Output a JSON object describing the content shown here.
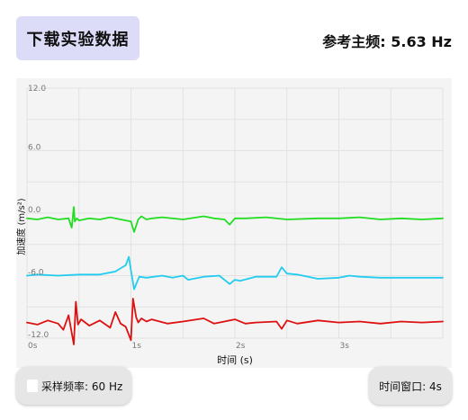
{
  "header": {
    "download_label": "下载实验数据",
    "ref_freq_label": "参考主频: 5.63 Hz"
  },
  "chart_data": {
    "type": "line",
    "title": "",
    "xlabel": "时间 (s)",
    "ylabel": "加速度 (m/s²)",
    "xlim": [
      0,
      4
    ],
    "ylim": [
      -12,
      12
    ],
    "grid": true,
    "x_ticks": [
      {
        "value": 0,
        "label": "0s"
      },
      {
        "value": 1,
        "label": "1s"
      },
      {
        "value": 2,
        "label": "2s"
      },
      {
        "value": 3,
        "label": "3s"
      }
    ],
    "y_ticks": [
      {
        "value": 12,
        "label": "12.0"
      },
      {
        "value": 6,
        "label": "6.0"
      },
      {
        "value": 0,
        "label": "0.0"
      },
      {
        "value": -6,
        "label": "-6.0"
      },
      {
        "value": -12,
        "label": "-12.0"
      }
    ],
    "series": [
      {
        "color": "#22dd22",
        "x": [
          0,
          0.1,
          0.2,
          0.3,
          0.4,
          0.43,
          0.45,
          0.46,
          0.48,
          0.5,
          0.6,
          0.7,
          0.8,
          0.9,
          1.0,
          1.03,
          1.07,
          1.1,
          1.15,
          1.2,
          1.3,
          1.5,
          1.7,
          1.8,
          1.9,
          1.95,
          2.0,
          2.1,
          2.3,
          2.5,
          2.8,
          3.0,
          3.2,
          3.4,
          3.6,
          3.8,
          4.0
        ],
        "y": [
          -0.5,
          -0.6,
          -0.4,
          -0.6,
          -0.5,
          -1.4,
          0.6,
          -0.8,
          -0.5,
          -0.7,
          -0.5,
          -0.6,
          -0.4,
          -0.6,
          -0.8,
          -1.8,
          -0.6,
          -0.3,
          -0.6,
          -0.5,
          -0.4,
          -0.6,
          -0.3,
          -0.5,
          -0.6,
          -1.1,
          -0.5,
          -0.5,
          -0.4,
          -0.6,
          -0.5,
          -0.5,
          -0.4,
          -0.6,
          -0.5,
          -0.6,
          -0.5
        ]
      },
      {
        "color": "#22ccee",
        "x": [
          0,
          0.1,
          0.3,
          0.5,
          0.7,
          0.85,
          0.95,
          0.98,
          1.0,
          1.03,
          1.08,
          1.15,
          1.3,
          1.4,
          1.5,
          1.55,
          1.7,
          1.85,
          1.95,
          2.0,
          2.05,
          2.2,
          2.4,
          2.45,
          2.5,
          2.6,
          2.8,
          3.0,
          3.1,
          3.2,
          3.4,
          3.6,
          3.8,
          4.0
        ],
        "y": [
          -6.0,
          -5.9,
          -6.0,
          -5.9,
          -5.9,
          -5.6,
          -5.0,
          -4.2,
          -5.5,
          -7.3,
          -6.1,
          -6.2,
          -6.0,
          -6.2,
          -6.0,
          -6.4,
          -6.1,
          -6.0,
          -6.8,
          -6.4,
          -6.5,
          -6.1,
          -6.1,
          -5.2,
          -5.8,
          -5.9,
          -6.3,
          -6.2,
          -6.0,
          -6.1,
          -6.2,
          -6.2,
          -6.2,
          -6.2
        ]
      },
      {
        "color": "#dd1111",
        "x": [
          0,
          0.1,
          0.2,
          0.3,
          0.35,
          0.4,
          0.45,
          0.47,
          0.49,
          0.52,
          0.6,
          0.7,
          0.8,
          0.85,
          0.9,
          0.95,
          1.0,
          1.02,
          1.05,
          1.07,
          1.1,
          1.15,
          1.2,
          1.35,
          1.5,
          1.7,
          1.8,
          1.9,
          2.0,
          2.1,
          2.2,
          2.4,
          2.45,
          2.5,
          2.6,
          2.8,
          3.0,
          3.2,
          3.4,
          3.6,
          3.8,
          4.0
        ],
        "y": [
          -10.5,
          -10.7,
          -10.3,
          -10.6,
          -11.2,
          -9.8,
          -12.6,
          -8.5,
          -10.7,
          -10.2,
          -10.8,
          -10.3,
          -11.0,
          -9.5,
          -10.6,
          -10.9,
          -12.2,
          -8.2,
          -10.0,
          -10.5,
          -10.1,
          -10.4,
          -10.2,
          -10.6,
          -10.4,
          -10.1,
          -10.6,
          -10.4,
          -10.2,
          -10.6,
          -10.5,
          -10.4,
          -11.1,
          -10.3,
          -10.6,
          -10.3,
          -10.5,
          -10.4,
          -10.6,
          -10.4,
          -10.5,
          -10.4
        ]
      }
    ]
  },
  "footer": {
    "sample_rate_label": "采样频率: 60 Hz",
    "time_window_label": "时间窗口: 4s"
  }
}
